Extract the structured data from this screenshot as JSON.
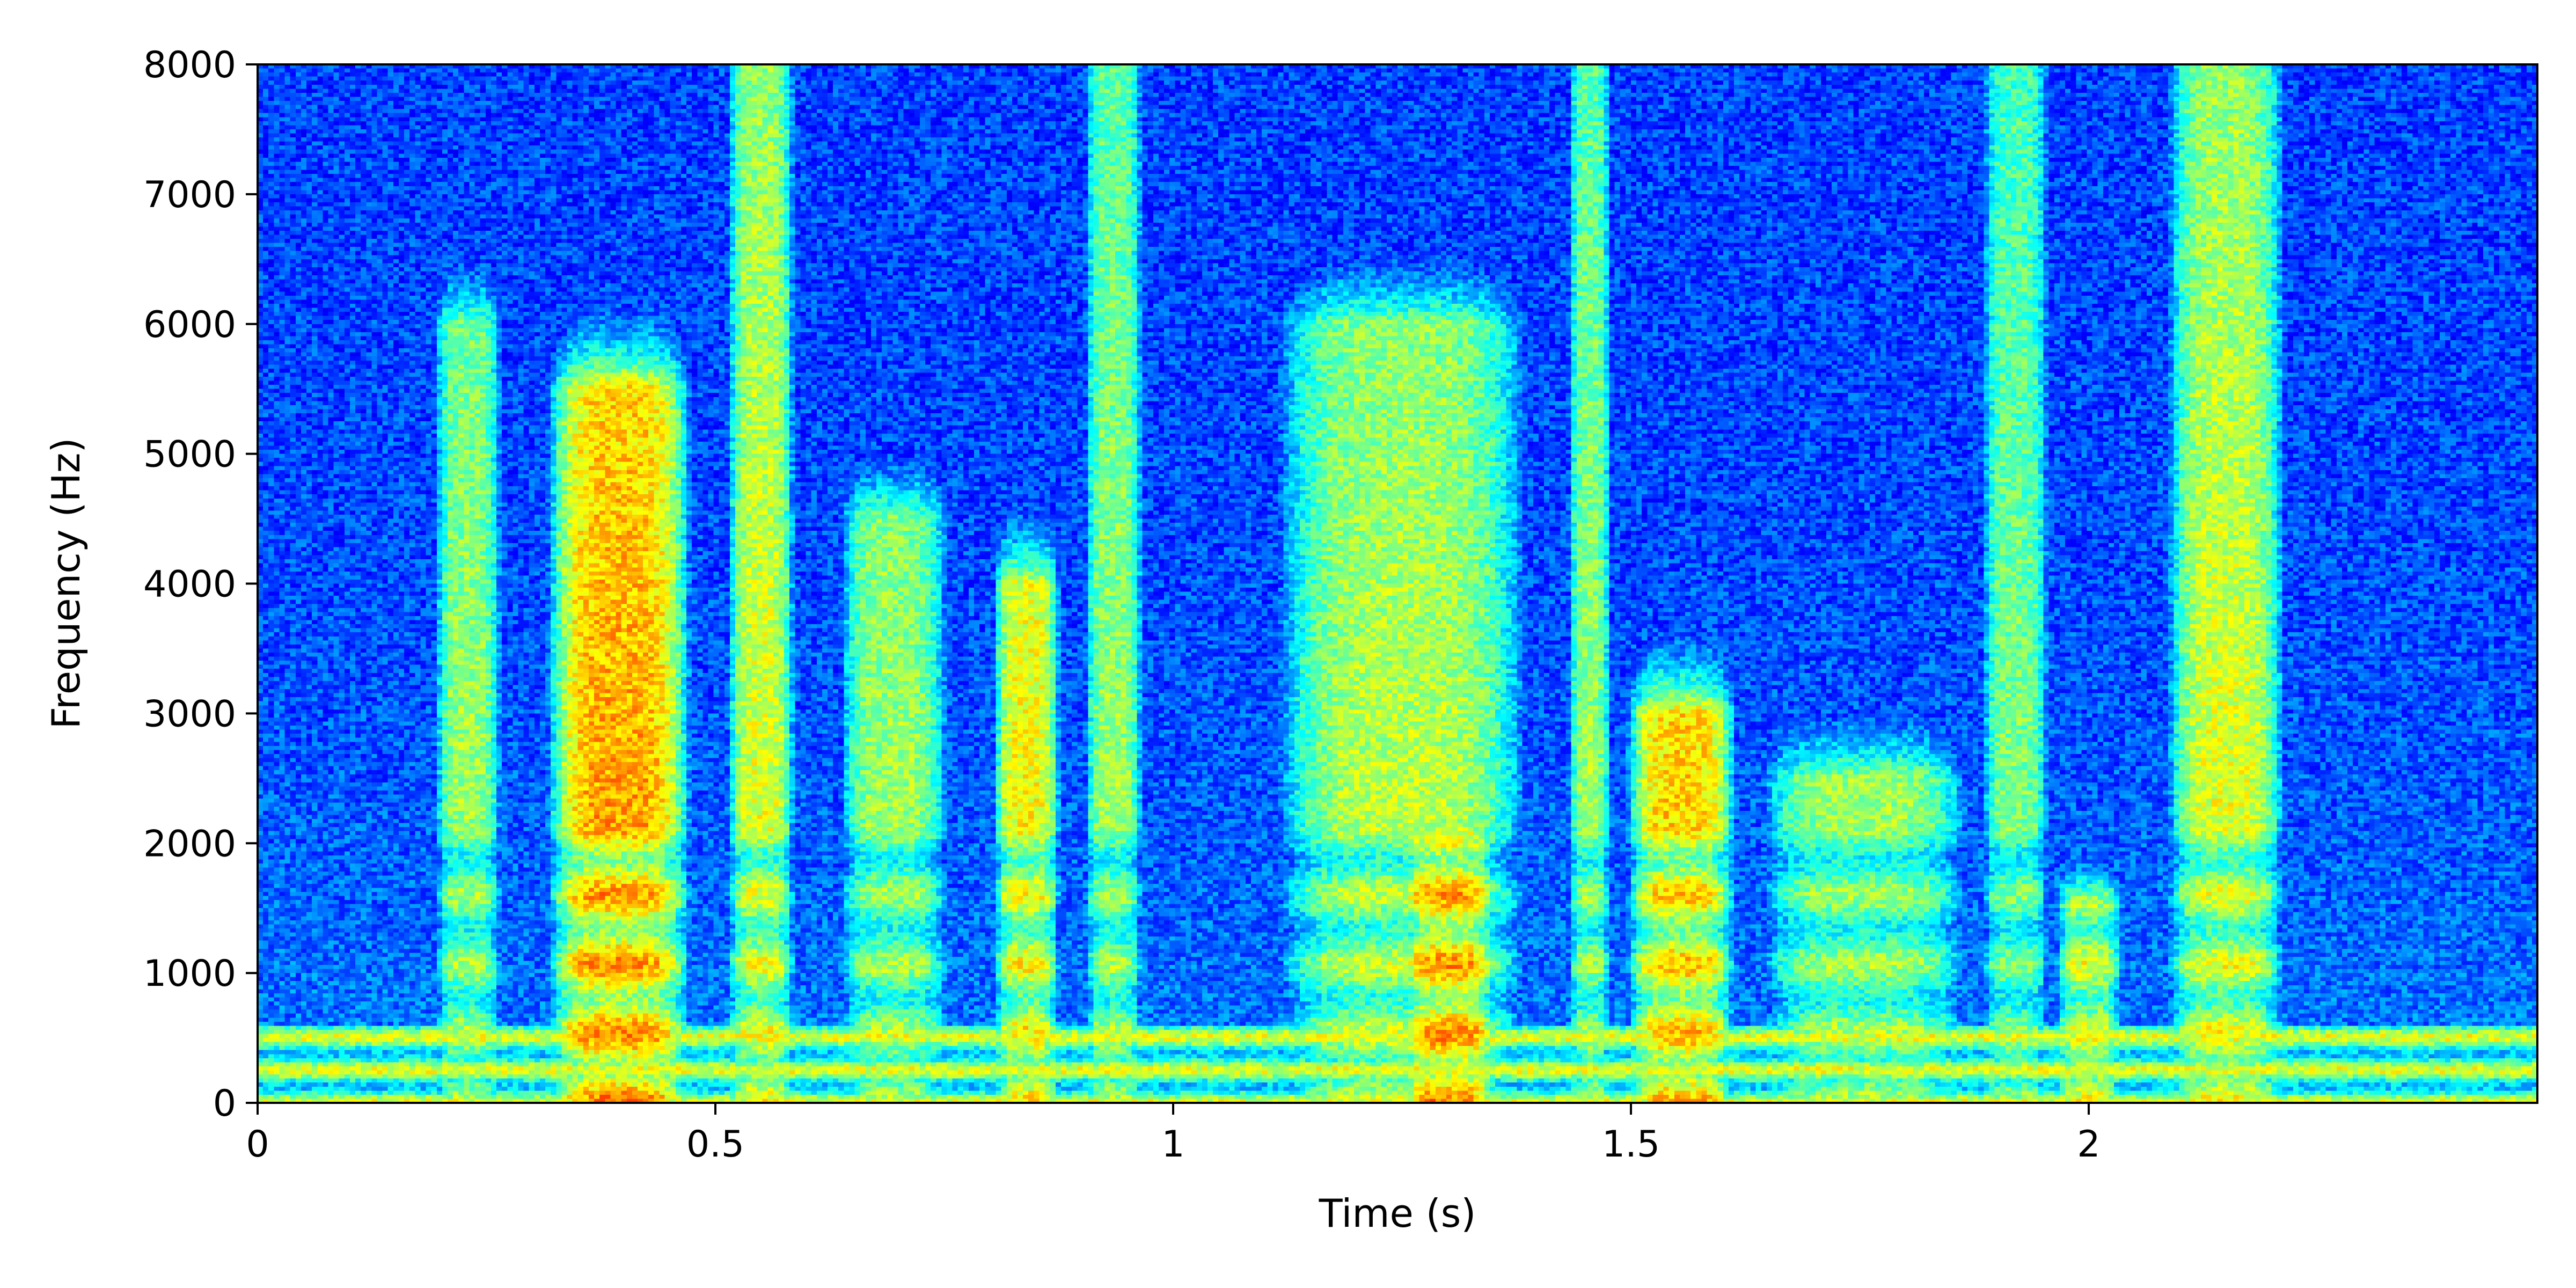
{
  "chart_data": {
    "type": "heatmap",
    "title": "",
    "xlabel": "Time (s)",
    "ylabel": "Frequency (Hz)",
    "xlim": [
      0,
      2.49
    ],
    "ylim": [
      0,
      8000
    ],
    "xticks": [
      {
        "value": 0,
        "label": "0"
      },
      {
        "value": 0.5,
        "label": "0.5"
      },
      {
        "value": 1,
        "label": "1"
      },
      {
        "value": 1.5,
        "label": "1.5"
      },
      {
        "value": 2,
        "label": "2"
      }
    ],
    "yticks": [
      {
        "value": 0,
        "label": "0"
      },
      {
        "value": 1000,
        "label": "1000"
      },
      {
        "value": 2000,
        "label": "2000"
      },
      {
        "value": 3000,
        "label": "3000"
      },
      {
        "value": 4000,
        "label": "4000"
      },
      {
        "value": 5000,
        "label": "5000"
      },
      {
        "value": 6000,
        "label": "6000"
      },
      {
        "value": 7000,
        "label": "7000"
      },
      {
        "value": 8000,
        "label": "8000"
      }
    ],
    "colormap": "jet",
    "grid": false,
    "legend": "none",
    "segments": [
      {
        "start": 0.19,
        "end": 0.27,
        "max_freq": 6000,
        "intensity": 0.55
      },
      {
        "start": 0.31,
        "end": 0.48,
        "max_freq": 5500,
        "intensity": 0.75
      },
      {
        "start": 0.51,
        "end": 0.59,
        "max_freq": 8000,
        "intensity": 0.62
      },
      {
        "start": 0.63,
        "end": 0.76,
        "max_freq": 4500,
        "intensity": 0.55
      },
      {
        "start": 0.8,
        "end": 0.88,
        "max_freq": 4000,
        "intensity": 0.65
      },
      {
        "start": 0.9,
        "end": 0.97,
        "max_freq": 8000,
        "intensity": 0.55
      },
      {
        "start": 1.1,
        "end": 1.4,
        "max_freq": 6000,
        "intensity": 0.58
      },
      {
        "start": 1.24,
        "end": 1.36,
        "max_freq": 2000,
        "intensity": 0.75
      },
      {
        "start": 1.43,
        "end": 1.48,
        "max_freq": 8000,
        "intensity": 0.55
      },
      {
        "start": 1.49,
        "end": 1.62,
        "max_freq": 3000,
        "intensity": 0.7
      },
      {
        "start": 1.63,
        "end": 1.88,
        "max_freq": 2500,
        "intensity": 0.55
      },
      {
        "start": 1.88,
        "end": 1.96,
        "max_freq": 8000,
        "intensity": 0.52
      },
      {
        "start": 1.96,
        "end": 2.04,
        "max_freq": 1500,
        "intensity": 0.62
      },
      {
        "start": 2.08,
        "end": 2.22,
        "max_freq": 8000,
        "intensity": 0.62
      }
    ],
    "low_frequency_band": {
      "freq_max": 600,
      "intensity": 0.7
    },
    "colormap_stops": [
      "#00008f",
      "#0000ff",
      "#00ffff",
      "#ffff00",
      "#ff0000",
      "#800000"
    ]
  }
}
